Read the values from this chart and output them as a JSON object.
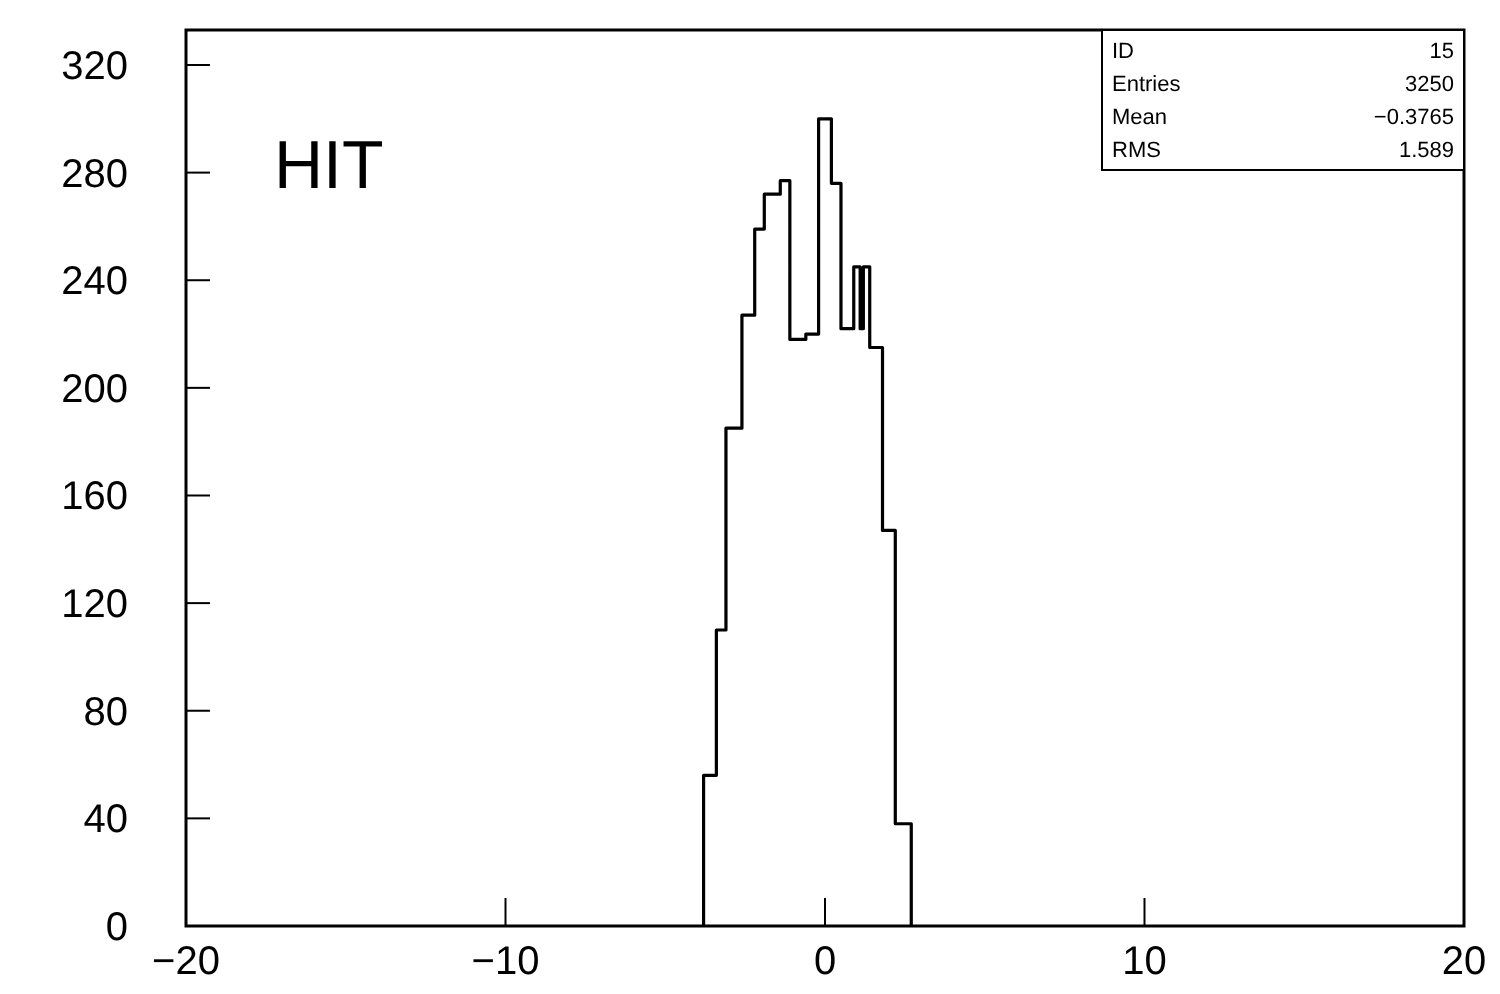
{
  "chart_data": {
    "type": "histogram",
    "title": "HIT",
    "bins": [
      -3.8,
      -3.4,
      -3.1,
      -2.6,
      -2.2,
      -1.9,
      -1.4,
      -1.1,
      -0.6,
      -0.2,
      0.2,
      0.5,
      0.9,
      1.1,
      1.2,
      1.4,
      1.8,
      2.2,
      2.7
    ],
    "values": [
      56,
      110,
      185,
      227,
      259,
      272,
      277,
      218,
      220,
      300,
      276,
      222,
      245,
      222,
      245,
      215,
      147,
      38
    ],
    "color": "#000000",
    "xlim": [
      -20,
      20
    ],
    "xticks": [
      -20,
      -10,
      0,
      10,
      20
    ],
    "ylim": [
      0,
      333
    ],
    "yticks": [
      0,
      40,
      80,
      120,
      160,
      200,
      240,
      280,
      320
    ],
    "annotations": [
      "ID 15",
      "Entries 3250",
      "Mean −0.3765",
      "RMS 1.589"
    ],
    "grid": false
  }
}
